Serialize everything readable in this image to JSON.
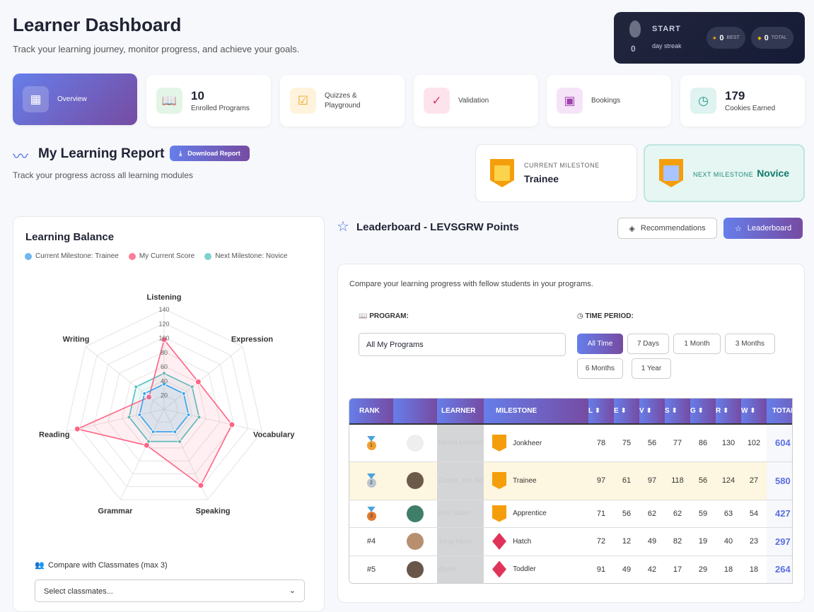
{
  "header": {
    "title": "Learner Dashboard",
    "subtitle": "Track your learning journey, monitor progress, and achieve your goals."
  },
  "streak": {
    "count": "0",
    "label": "START",
    "sub": "day streak",
    "best_value": "0",
    "best_label": "BEST",
    "total_value": "0",
    "total_label": "TOTAL"
  },
  "nav_cards": [
    {
      "label": "Overview",
      "icon": "grid-icon"
    },
    {
      "value": "10",
      "label": "Enrolled Programs",
      "icon": "book-icon"
    },
    {
      "label": "Quizzes & Playground",
      "icon": "checkbox-icon"
    },
    {
      "label": "Validation",
      "icon": "check-circle-icon"
    },
    {
      "label": "Bookings",
      "icon": "calendar-icon"
    },
    {
      "value": "179",
      "label": "Cookies Earned",
      "icon": "clock-icon"
    }
  ],
  "report": {
    "title": "My Learning Report",
    "download": "Download Report",
    "subtitle": "Track your progress across all learning modules"
  },
  "current_milestone": {
    "label": "CURRENT MILESTONE",
    "name": "Trainee"
  },
  "next_milestone": {
    "label": "NEXT MILESTONE",
    "name": "Novice"
  },
  "balance": {
    "title": "Learning Balance",
    "compare_label": "Compare with Classmates (max 3)",
    "compare_placeholder": "Select classmates..."
  },
  "chart_data": {
    "type": "radar",
    "axes": [
      "Listening",
      "Expression",
      "Vocabulary",
      "Speaking",
      "Grammar",
      "Reading",
      "Writing"
    ],
    "ticks": [
      20,
      40,
      60,
      80,
      100,
      120,
      140
    ],
    "range": [
      0,
      140
    ],
    "legend_position": "top",
    "series": [
      {
        "name": "Current Milestone: Trainee",
        "color": "#36a2eb",
        "values": [
          35,
          35,
          35,
          35,
          35,
          35,
          35
        ]
      },
      {
        "name": "My Current Score",
        "color": "#ff6384",
        "values": [
          97,
          61,
          97,
          118,
          56,
          124,
          27
        ]
      },
      {
        "name": "Next Milestone: Novice",
        "color": "#4bc0c0",
        "values": [
          50,
          50,
          50,
          50,
          50,
          50,
          50
        ]
      }
    ]
  },
  "leaderboard": {
    "title": "Leaderboard - LEVSGRW Points",
    "tab_recommendations": "Recommendations",
    "tab_leaderboard": "Leaderboard",
    "intro": "Compare your learning progress with fellow students in your programs.",
    "program_label": "PROGRAM:",
    "program_value": "All My Programs",
    "period_label": "TIME PERIOD:",
    "periods": [
      "All Time",
      "7 Days",
      "1 Month",
      "3 Months",
      "6 Months",
      "1 Year"
    ],
    "active_period": "All Time",
    "columns": [
      "RANK",
      "LEARNER",
      "MILESTONE",
      "L",
      "E",
      "V",
      "S",
      "G",
      "R",
      "W",
      "TOTAL"
    ],
    "rows": [
      {
        "rank": "1",
        "learner": "Demo Learner",
        "milestone": "Jonkheer",
        "scores": [
          "78",
          "75",
          "56",
          "77",
          "86",
          "130",
          "102"
        ],
        "total": "604"
      },
      {
        "rank": "2",
        "learner": "Grace_Xin Jie",
        "milestone": "Trainee",
        "scores": [
          "97",
          "61",
          "97",
          "118",
          "56",
          "124",
          "27"
        ],
        "total": "580",
        "highlight": true
      },
      {
        "rank": "3",
        "learner": "Kim Ssam",
        "milestone": "Apprentice",
        "scores": [
          "71",
          "56",
          "62",
          "62",
          "59",
          "63",
          "54"
        ],
        "total": "427"
      },
      {
        "rank": "#4",
        "learner": "Jung Hyun",
        "milestone": "Hatch",
        "scores": [
          "72",
          "12",
          "49",
          "82",
          "19",
          "40",
          "23"
        ],
        "total": "297"
      },
      {
        "rank": "#5",
        "learner": "Apple",
        "milestone": "Toddler",
        "scores": [
          "91",
          "49",
          "42",
          "17",
          "29",
          "18",
          "18"
        ],
        "total": "264"
      }
    ]
  },
  "colors": {
    "accent": "#667eea",
    "accent2": "#764ba2",
    "highlight_row": "#fdf6e0",
    "total": "#5b6ee1"
  }
}
